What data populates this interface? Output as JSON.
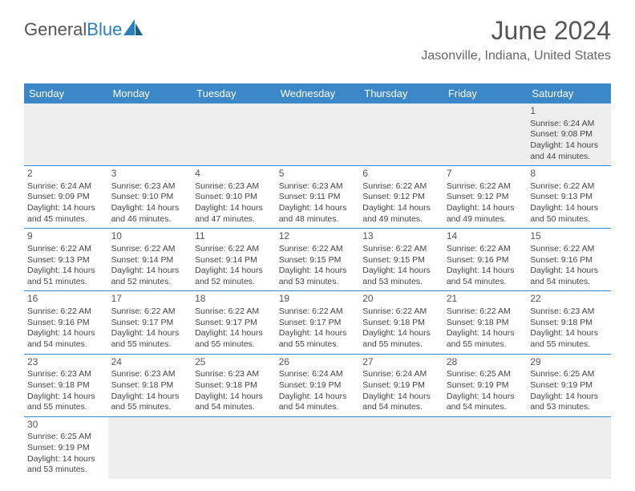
{
  "logo": {
    "text1": "General",
    "text2": "Blue"
  },
  "title": "June 2024",
  "location": "Jasonville, Indiana, United States",
  "colors": {
    "header_bg": "#3b87c8",
    "header_text": "#ffffff",
    "border": "#3b87c8",
    "empty_bg": "#eeeeee",
    "text": "#444444"
  },
  "weekdays": [
    "Sunday",
    "Monday",
    "Tuesday",
    "Wednesday",
    "Thursday",
    "Friday",
    "Saturday"
  ],
  "first_weekday": 6,
  "days": [
    {
      "n": 1,
      "sr": "6:24 AM",
      "ss": "9:08 PM",
      "dl": "14 hours and 44 minutes."
    },
    {
      "n": 2,
      "sr": "6:24 AM",
      "ss": "9:09 PM",
      "dl": "14 hours and 45 minutes."
    },
    {
      "n": 3,
      "sr": "6:23 AM",
      "ss": "9:10 PM",
      "dl": "14 hours and 46 minutes."
    },
    {
      "n": 4,
      "sr": "6:23 AM",
      "ss": "9:10 PM",
      "dl": "14 hours and 47 minutes."
    },
    {
      "n": 5,
      "sr": "6:23 AM",
      "ss": "9:11 PM",
      "dl": "14 hours and 48 minutes."
    },
    {
      "n": 6,
      "sr": "6:22 AM",
      "ss": "9:12 PM",
      "dl": "14 hours and 49 minutes."
    },
    {
      "n": 7,
      "sr": "6:22 AM",
      "ss": "9:12 PM",
      "dl": "14 hours and 49 minutes."
    },
    {
      "n": 8,
      "sr": "6:22 AM",
      "ss": "9:13 PM",
      "dl": "14 hours and 50 minutes."
    },
    {
      "n": 9,
      "sr": "6:22 AM",
      "ss": "9:13 PM",
      "dl": "14 hours and 51 minutes."
    },
    {
      "n": 10,
      "sr": "6:22 AM",
      "ss": "9:14 PM",
      "dl": "14 hours and 52 minutes."
    },
    {
      "n": 11,
      "sr": "6:22 AM",
      "ss": "9:14 PM",
      "dl": "14 hours and 52 minutes."
    },
    {
      "n": 12,
      "sr": "6:22 AM",
      "ss": "9:15 PM",
      "dl": "14 hours and 53 minutes."
    },
    {
      "n": 13,
      "sr": "6:22 AM",
      "ss": "9:15 PM",
      "dl": "14 hours and 53 minutes."
    },
    {
      "n": 14,
      "sr": "6:22 AM",
      "ss": "9:16 PM",
      "dl": "14 hours and 54 minutes."
    },
    {
      "n": 15,
      "sr": "6:22 AM",
      "ss": "9:16 PM",
      "dl": "14 hours and 54 minutes."
    },
    {
      "n": 16,
      "sr": "6:22 AM",
      "ss": "9:16 PM",
      "dl": "14 hours and 54 minutes."
    },
    {
      "n": 17,
      "sr": "6:22 AM",
      "ss": "9:17 PM",
      "dl": "14 hours and 55 minutes."
    },
    {
      "n": 18,
      "sr": "6:22 AM",
      "ss": "9:17 PM",
      "dl": "14 hours and 55 minutes."
    },
    {
      "n": 19,
      "sr": "6:22 AM",
      "ss": "9:17 PM",
      "dl": "14 hours and 55 minutes."
    },
    {
      "n": 20,
      "sr": "6:22 AM",
      "ss": "9:18 PM",
      "dl": "14 hours and 55 minutes."
    },
    {
      "n": 21,
      "sr": "6:22 AM",
      "ss": "9:18 PM",
      "dl": "14 hours and 55 minutes."
    },
    {
      "n": 22,
      "sr": "6:23 AM",
      "ss": "9:18 PM",
      "dl": "14 hours and 55 minutes."
    },
    {
      "n": 23,
      "sr": "6:23 AM",
      "ss": "9:18 PM",
      "dl": "14 hours and 55 minutes."
    },
    {
      "n": 24,
      "sr": "6:23 AM",
      "ss": "9:18 PM",
      "dl": "14 hours and 55 minutes."
    },
    {
      "n": 25,
      "sr": "6:23 AM",
      "ss": "9:18 PM",
      "dl": "14 hours and 54 minutes."
    },
    {
      "n": 26,
      "sr": "6:24 AM",
      "ss": "9:19 PM",
      "dl": "14 hours and 54 minutes."
    },
    {
      "n": 27,
      "sr": "6:24 AM",
      "ss": "9:19 PM",
      "dl": "14 hours and 54 minutes."
    },
    {
      "n": 28,
      "sr": "6:25 AM",
      "ss": "9:19 PM",
      "dl": "14 hours and 54 minutes."
    },
    {
      "n": 29,
      "sr": "6:25 AM",
      "ss": "9:19 PM",
      "dl": "14 hours and 53 minutes."
    },
    {
      "n": 30,
      "sr": "6:25 AM",
      "ss": "9:19 PM",
      "dl": "14 hours and 53 minutes."
    }
  ],
  "labels": {
    "sunrise": "Sunrise:",
    "sunset": "Sunset:",
    "daylight": "Daylight:"
  }
}
